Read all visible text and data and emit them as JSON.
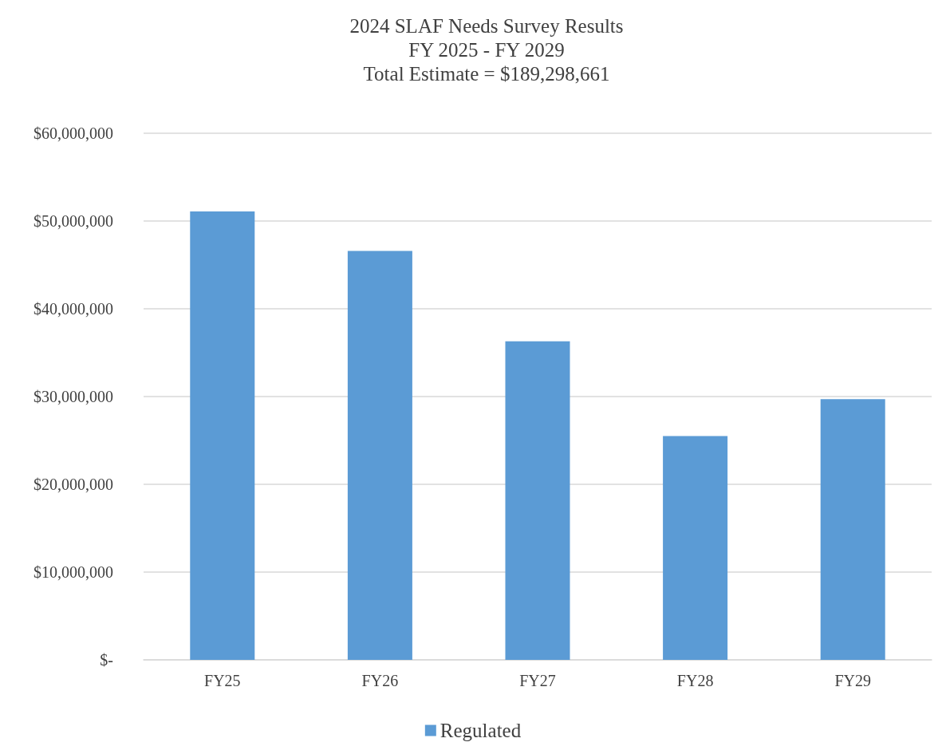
{
  "chart_data": {
    "type": "bar",
    "title": "2024 SLAF Needs Survey Results\nFY 2025 - FY 2029\nTotal Estimate = $189,298,661",
    "categories": [
      "FY25",
      "FY26",
      "FY27",
      "FY28",
      "FY29"
    ],
    "series": [
      {
        "name": "Regulated",
        "color": "#5b9bd5",
        "values": [
          51100000,
          46600000,
          36300000,
          25500000,
          29700000
        ]
      }
    ],
    "ylim": [
      0,
      60000000
    ],
    "yticks": [
      {
        "value": 0,
        "label": "$-"
      },
      {
        "value": 10000000,
        "label": "$10,000,000"
      },
      {
        "value": 20000000,
        "label": "$20,000,000"
      },
      {
        "value": 30000000,
        "label": "$30,000,000"
      },
      {
        "value": 40000000,
        "label": "$40,000,000"
      },
      {
        "value": 50000000,
        "label": "$50,000,000"
      },
      {
        "value": 60000000,
        "label": "$60,000,000"
      }
    ],
    "grid": "y",
    "legend": "bottom"
  }
}
